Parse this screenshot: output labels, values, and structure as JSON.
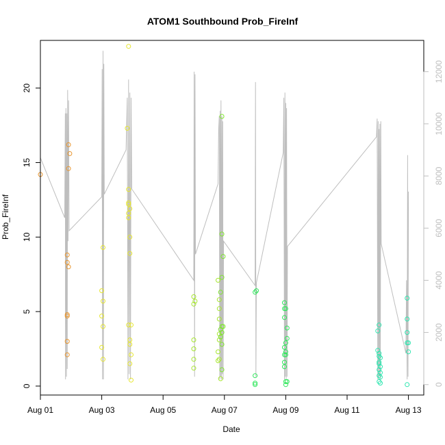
{
  "chart_data": {
    "type": "scatter",
    "title": "ATOM1 Southbound Prob_FireInf",
    "xlabel": "Date",
    "ylabel": "Prob_FireInf",
    "x_scale": "date",
    "xlim": [
      "2014-08-01T00:00",
      "2014-08-13T12:00"
    ],
    "ylim": [
      -0.6,
      23.2
    ],
    "y2lim": [
      -400,
      13200
    ],
    "x_ticks": [
      {
        "x": "2014-08-01T00:00",
        "label": "Aug 01"
      },
      {
        "x": "2014-08-03T00:00",
        "label": "Aug 03"
      },
      {
        "x": "2014-08-05T00:00",
        "label": "Aug 05"
      },
      {
        "x": "2014-08-07T00:00",
        "label": "Aug 07"
      },
      {
        "x": "2014-08-09T00:00",
        "label": "Aug 09"
      },
      {
        "x": "2014-08-11T00:00",
        "label": "Aug 11"
      },
      {
        "x": "2014-08-13T00:00",
        "label": "Aug 13"
      }
    ],
    "y_ticks": [
      {
        "y": 0,
        "label": "0"
      },
      {
        "y": 5,
        "label": "5"
      },
      {
        "y": 10,
        "label": "10"
      },
      {
        "y": 15,
        "label": "15"
      },
      {
        "y": 20,
        "label": "20"
      }
    ],
    "y2_ticks": [
      {
        "y": 0,
        "label": "0"
      },
      {
        "y": 2000,
        "label": "2000"
      },
      {
        "y": 4000,
        "label": "4000"
      },
      {
        "y": 6000,
        "label": "6000"
      },
      {
        "y": 8000,
        "label": "8000"
      },
      {
        "y": 10000,
        "label": "10000"
      },
      {
        "y": 12000,
        "label": "12000"
      }
    ],
    "grid": false,
    "legend": "none",
    "colors": {
      "line": "#bebebe",
      "axis": "#000000",
      "right_axis": "#bebebe"
    },
    "points": [
      {
        "x": "2014-08-01T00:00",
        "y": 14.2,
        "color": "#e8952e"
      },
      {
        "x": "2014-08-01T21:00",
        "y": 8.8,
        "color": "#e8952e"
      },
      {
        "x": "2014-08-01T21:00",
        "y": 8.3,
        "color": "#e8952e"
      },
      {
        "x": "2014-08-01T21:00",
        "y": 4.8,
        "color": "#e8952e"
      },
      {
        "x": "2014-08-01T21:00",
        "y": 4.7,
        "color": "#e8952e"
      },
      {
        "x": "2014-08-01T21:00",
        "y": 3.0,
        "color": "#e8952e"
      },
      {
        "x": "2014-08-01T21:00",
        "y": 2.1,
        "color": "#e8952e"
      },
      {
        "x": "2014-08-01T22:00",
        "y": 16.2,
        "color": "#e8952e"
      },
      {
        "x": "2014-08-01T23:00",
        "y": 15.6,
        "color": "#e8952e"
      },
      {
        "x": "2014-08-01T22:00",
        "y": 14.6,
        "color": "#e8952e"
      },
      {
        "x": "2014-08-01T22:00",
        "y": 8.0,
        "color": "#e8952e"
      },
      {
        "x": "2014-08-03T00:00",
        "y": 6.4,
        "color": "#e6e62e"
      },
      {
        "x": "2014-08-03T00:00",
        "y": 4.7,
        "color": "#e6e62e"
      },
      {
        "x": "2014-08-03T00:00",
        "y": 2.6,
        "color": "#e6e62e"
      },
      {
        "x": "2014-08-03T01:00",
        "y": 9.3,
        "color": "#e6e62e"
      },
      {
        "x": "2014-08-03T01:00",
        "y": 5.7,
        "color": "#e6e62e"
      },
      {
        "x": "2014-08-03T01:00",
        "y": 4.0,
        "color": "#e6e62e"
      },
      {
        "x": "2014-08-03T01:00",
        "y": 1.8,
        "color": "#e6e62e"
      },
      {
        "x": "2014-08-03T21:00",
        "y": 22.8,
        "color": "#e6e62e"
      },
      {
        "x": "2014-08-03T20:00",
        "y": 17.3,
        "color": "#e6e62e"
      },
      {
        "x": "2014-08-03T21:00",
        "y": 13.2,
        "color": "#e6e62e"
      },
      {
        "x": "2014-08-03T21:00",
        "y": 12.3,
        "color": "#e6e62e"
      },
      {
        "x": "2014-08-03T21:00",
        "y": 12.2,
        "color": "#e6e62e"
      },
      {
        "x": "2014-08-03T21:00",
        "y": 11.6,
        "color": "#e6e62e"
      },
      {
        "x": "2014-08-03T21:00",
        "y": 11.3,
        "color": "#e6e62e"
      },
      {
        "x": "2014-08-03T22:00",
        "y": 11.9,
        "color": "#e6e62e"
      },
      {
        "x": "2014-08-03T22:00",
        "y": 10.0,
        "color": "#e6e62e"
      },
      {
        "x": "2014-08-03T22:00",
        "y": 8.9,
        "color": "#e6e62e"
      },
      {
        "x": "2014-08-03T21:00",
        "y": 4.1,
        "color": "#e6e62e"
      },
      {
        "x": "2014-08-03T23:00",
        "y": 4.1,
        "color": "#e6e62e"
      },
      {
        "x": "2014-08-03T22:00",
        "y": 3.1,
        "color": "#e6e62e"
      },
      {
        "x": "2014-08-03T22:00",
        "y": 2.8,
        "color": "#e6e62e"
      },
      {
        "x": "2014-08-03T23:00",
        "y": 2.1,
        "color": "#e6e62e"
      },
      {
        "x": "2014-08-03T22:00",
        "y": 1.5,
        "color": "#e6e62e"
      },
      {
        "x": "2014-08-03T23:00",
        "y": 0.4,
        "color": "#e6e62e"
      },
      {
        "x": "2014-08-06T00:00",
        "y": 6.0,
        "color": "#a6e62e"
      },
      {
        "x": "2014-08-06T00:00",
        "y": 5.5,
        "color": "#a6e62e"
      },
      {
        "x": "2014-08-06T01:00",
        "y": 5.7,
        "color": "#a6e62e"
      },
      {
        "x": "2014-08-06T00:00",
        "y": 3.1,
        "color": "#a6e62e"
      },
      {
        "x": "2014-08-06T00:00",
        "y": 2.5,
        "color": "#a6e62e"
      },
      {
        "x": "2014-08-06T00:00",
        "y": 1.8,
        "color": "#a6e62e"
      },
      {
        "x": "2014-08-06T00:00",
        "y": 1.2,
        "color": "#a6e62e"
      },
      {
        "x": "2014-08-06T19:00",
        "y": 7.1,
        "color": "#a6e62e"
      },
      {
        "x": "2014-08-06T20:00",
        "y": 5.8,
        "color": "#a6e62e"
      },
      {
        "x": "2014-08-06T20:00",
        "y": 5.2,
        "color": "#a6e62e"
      },
      {
        "x": "2014-08-06T20:00",
        "y": 4.5,
        "color": "#a6e62e"
      },
      {
        "x": "2014-08-06T20:00",
        "y": 3.5,
        "color": "#a6e62e"
      },
      {
        "x": "2014-08-06T20:00",
        "y": 3.1,
        "color": "#a6e62e"
      },
      {
        "x": "2014-08-06T19:00",
        "y": 2.3,
        "color": "#a6e62e"
      },
      {
        "x": "2014-08-06T19:00",
        "y": 1.7,
        "color": "#a6e62e"
      },
      {
        "x": "2014-08-06T20:00",
        "y": 1.8,
        "color": "#a6e62e"
      },
      {
        "x": "2014-08-06T21:00",
        "y": 0.5,
        "color": "#a6e62e"
      },
      {
        "x": "2014-08-06T22:00",
        "y": 18.1,
        "color": "#7fe62e"
      },
      {
        "x": "2014-08-06T22:00",
        "y": 10.2,
        "color": "#7fe62e"
      },
      {
        "x": "2014-08-06T23:00",
        "y": 8.7,
        "color": "#7fe62e"
      },
      {
        "x": "2014-08-06T22:00",
        "y": 7.3,
        "color": "#7fe62e"
      },
      {
        "x": "2014-08-06T21:00",
        "y": 6.3,
        "color": "#7fe62e"
      },
      {
        "x": "2014-08-06T22:00",
        "y": 4.0,
        "color": "#7fe62e"
      },
      {
        "x": "2014-08-06T23:00",
        "y": 4.0,
        "color": "#7fe62e"
      },
      {
        "x": "2014-08-06T21:00",
        "y": 3.8,
        "color": "#7fe62e"
      },
      {
        "x": "2014-08-06T22:00",
        "y": 3.6,
        "color": "#7fe62e"
      },
      {
        "x": "2014-08-06T21:00",
        "y": 3.3,
        "color": "#7fe62e"
      },
      {
        "x": "2014-08-06T22:00",
        "y": 2.8,
        "color": "#7fe62e"
      },
      {
        "x": "2014-08-06T22:00",
        "y": 1.1,
        "color": "#7fe62e"
      },
      {
        "x": "2014-08-08T00:00",
        "y": 6.3,
        "color": "#2ee65a"
      },
      {
        "x": "2014-08-08T01:00",
        "y": 6.4,
        "color": "#2ee65a"
      },
      {
        "x": "2014-08-08T00:00",
        "y": 0.7,
        "color": "#2ee65a"
      },
      {
        "x": "2014-08-08T00:00",
        "y": 0.2,
        "color": "#2ee65a"
      },
      {
        "x": "2014-08-08T00:00",
        "y": 0.1,
        "color": "#2ee65a"
      },
      {
        "x": "2014-08-08T23:00",
        "y": 5.6,
        "color": "#2ee65a"
      },
      {
        "x": "2014-08-08T23:00",
        "y": 5.2,
        "color": "#2ee65a"
      },
      {
        "x": "2014-08-09T00:00",
        "y": 5.2,
        "color": "#2ee65a"
      },
      {
        "x": "2014-08-08T23:00",
        "y": 4.6,
        "color": "#2ee65a"
      },
      {
        "x": "2014-08-09T01:00",
        "y": 3.9,
        "color": "#2ee65a"
      },
      {
        "x": "2014-08-09T01:00",
        "y": 3.2,
        "color": "#2ee65a"
      },
      {
        "x": "2014-08-09T00:00",
        "y": 2.9,
        "color": "#2ee65a"
      },
      {
        "x": "2014-08-08T23:00",
        "y": 2.6,
        "color": "#2ee65a"
      },
      {
        "x": "2014-08-09T00:00",
        "y": 2.3,
        "color": "#2ee65a"
      },
      {
        "x": "2014-08-08T23:00",
        "y": 2.1,
        "color": "#2ee65a"
      },
      {
        "x": "2014-08-09T00:00",
        "y": 2.1,
        "color": "#2ee65a"
      },
      {
        "x": "2014-08-08T23:00",
        "y": 1.6,
        "color": "#2ee65a"
      },
      {
        "x": "2014-08-08T23:00",
        "y": 1.3,
        "color": "#2ee65a"
      },
      {
        "x": "2014-08-09T00:00",
        "y": 0.3,
        "color": "#2ee65a"
      },
      {
        "x": "2014-08-09T01:00",
        "y": 0.3,
        "color": "#2ee65a"
      },
      {
        "x": "2014-08-09T00:00",
        "y": 0.1,
        "color": "#2ee65a"
      },
      {
        "x": "2014-08-12T00:00",
        "y": 3.7,
        "color": "#2ee6b0"
      },
      {
        "x": "2014-08-12T01:00",
        "y": 4.1,
        "color": "#2ee6b0"
      },
      {
        "x": "2014-08-12T00:00",
        "y": 2.4,
        "color": "#2ee6b0"
      },
      {
        "x": "2014-08-12T01:00",
        "y": 2.2,
        "color": "#2ee6b0"
      },
      {
        "x": "2014-08-12T01:00",
        "y": 2.0,
        "color": "#2ee6b0"
      },
      {
        "x": "2014-08-12T02:00",
        "y": 1.9,
        "color": "#2ee6b0"
      },
      {
        "x": "2014-08-12T01:00",
        "y": 1.6,
        "color": "#2ee6b0"
      },
      {
        "x": "2014-08-12T01:00",
        "y": 1.5,
        "color": "#2ee6b0"
      },
      {
        "x": "2014-08-12T02:00",
        "y": 1.3,
        "color": "#2ee6b0"
      },
      {
        "x": "2014-08-12T01:00",
        "y": 1.1,
        "color": "#2ee6b0"
      },
      {
        "x": "2014-08-12T02:00",
        "y": 0.9,
        "color": "#2ee6b0"
      },
      {
        "x": "2014-08-12T01:00",
        "y": 0.7,
        "color": "#2ee6b0"
      },
      {
        "x": "2014-08-12T02:00",
        "y": 0.6,
        "color": "#2ee6b0"
      },
      {
        "x": "2014-08-12T01:00",
        "y": 0.3,
        "color": "#2ee6b0"
      },
      {
        "x": "2014-08-12T02:00",
        "y": 0.2,
        "color": "#2ee6b0"
      },
      {
        "x": "2014-08-12T23:00",
        "y": 5.9,
        "color": "#2ee6b0"
      },
      {
        "x": "2014-08-12T23:00",
        "y": 4.5,
        "color": "#2ee6b0"
      },
      {
        "x": "2014-08-12T23:00",
        "y": 3.6,
        "color": "#2ee6b0"
      },
      {
        "x": "2014-08-12T23:00",
        "y": 2.9,
        "color": "#2ee6b0"
      },
      {
        "x": "2014-08-13T00:00",
        "y": 2.9,
        "color": "#2ee6b0"
      },
      {
        "x": "2014-08-13T00:00",
        "y": 2.3,
        "color": "#2ee6b0"
      },
      {
        "x": "2014-08-12T23:00",
        "y": 0.1,
        "color": "#2ee6b0"
      }
    ],
    "secondary_series": {
      "axis": "right",
      "x": [
        "2014-08-01T00:00",
        "2014-08-01T19:00",
        "2014-08-01T19:30",
        "2014-08-01T19:40",
        "2014-08-01T20:00",
        "2014-08-01T20:20",
        "2014-08-01T20:40",
        "2014-08-01T21:00",
        "2014-08-01T21:20",
        "2014-08-01T21:40",
        "2014-08-01T22:00",
        "2014-08-01T22:30",
        "2014-08-03T00:00",
        "2014-08-03T00:20",
        "2014-08-03T00:40",
        "2014-08-03T01:00",
        "2014-08-03T01:20",
        "2014-08-03T01:40",
        "2014-08-03T02:00",
        "2014-08-03T19:00",
        "2014-08-03T19:30",
        "2014-08-03T20:00",
        "2014-08-03T20:30",
        "2014-08-03T21:00",
        "2014-08-03T21:30",
        "2014-08-03T22:00",
        "2014-08-03T22:30",
        "2014-08-03T23:00",
        "2014-08-03T23:30",
        "2014-08-06T00:00",
        "2014-08-06T00:20",
        "2014-08-06T00:40",
        "2014-08-06T01:00",
        "2014-08-06T01:20",
        "2014-08-06T19:00",
        "2014-08-06T19:30",
        "2014-08-06T20:00",
        "2014-08-06T20:20",
        "2014-08-06T20:40",
        "2014-08-06T21:00",
        "2014-08-06T21:20",
        "2014-08-06T21:40",
        "2014-08-06T22:00",
        "2014-08-06T22:20",
        "2014-08-06T22:40",
        "2014-08-06T23:00",
        "2014-08-06T23:20",
        "2014-08-08T00:00",
        "2014-08-08T00:20",
        "2014-08-08T00:40",
        "2014-08-08T01:00",
        "2014-08-08T22:00",
        "2014-08-08T22:30",
        "2014-08-08T23:00",
        "2014-08-08T23:20",
        "2014-08-08T23:40",
        "2014-08-09T00:00",
        "2014-08-09T00:20",
        "2014-08-09T00:40",
        "2014-08-09T01:00",
        "2014-08-09T01:20",
        "2014-08-11T23:00",
        "2014-08-11T23:30",
        "2014-08-12T00:00",
        "2014-08-12T00:20",
        "2014-08-12T00:40",
        "2014-08-12T01:00",
        "2014-08-12T01:20",
        "2014-08-12T01:40",
        "2014-08-12T02:00",
        "2014-08-12T02:20",
        "2014-08-12T02:40",
        "2014-08-12T22:00",
        "2014-08-12T22:30",
        "2014-08-12T23:00",
        "2014-08-12T23:20",
        "2014-08-12T23:40",
        "2014-08-13T00:00"
      ],
      "y": [
        8700,
        6400,
        10400,
        200,
        10600,
        300,
        10400,
        600,
        11300,
        5500,
        10900,
        5900,
        7200,
        12100,
        200,
        12800,
        200,
        12300,
        7300,
        9000,
        10000,
        11000,
        200,
        11700,
        400,
        11200,
        200,
        11000,
        7500,
        4000,
        12000,
        300,
        11900,
        5000,
        7700,
        9800,
        10300,
        200,
        10500,
        300,
        10900,
        200,
        10300,
        400,
        10100,
        200,
        5500,
        3800,
        11600,
        300,
        3900,
        8900,
        11000,
        200,
        11200,
        300,
        10800,
        200,
        10600,
        300,
        5300,
        9500,
        10200,
        200,
        10100,
        300,
        9800,
        300,
        10000,
        200,
        10100,
        5400,
        1200,
        4000,
        200,
        8800,
        300,
        7400
      ]
    }
  }
}
